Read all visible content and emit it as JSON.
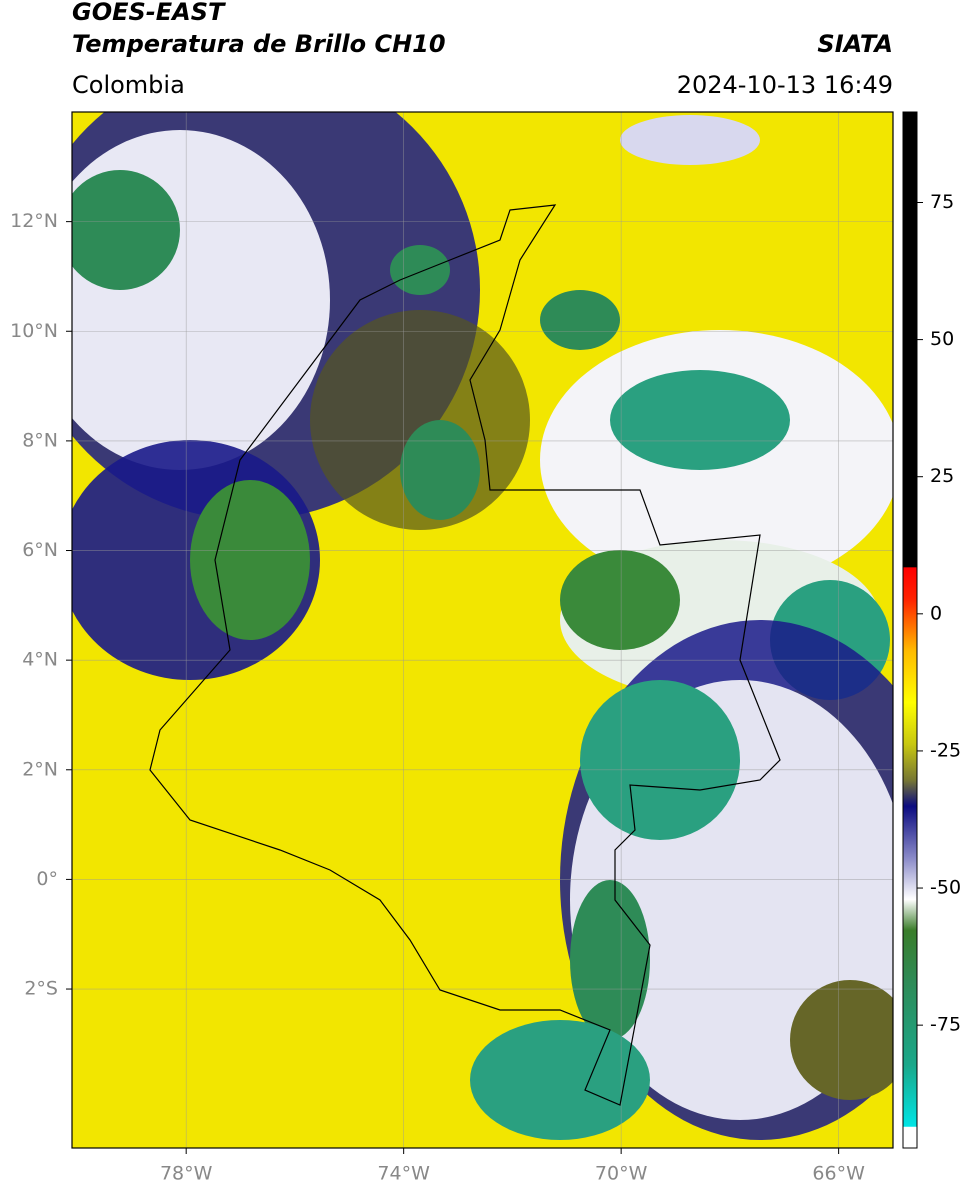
{
  "header": {
    "title": "GOES-EAST",
    "subtitle": "Temperatura de Brillo CH10",
    "source": "SIATA",
    "region": "Colombia",
    "timestamp": "2024-10-13 16:49"
  },
  "map": {
    "xlim": [
      -80.1,
      -65.0
    ],
    "ylim": [
      -4.9,
      14.0
    ],
    "grid": true,
    "xticks": [
      {
        "value": -78,
        "label": "78°W"
      },
      {
        "value": -74,
        "label": "74°W"
      },
      {
        "value": -70,
        "label": "70°W"
      },
      {
        "value": -66,
        "label": "66°W"
      }
    ],
    "yticks": [
      {
        "value": 12,
        "label": "12°N"
      },
      {
        "value": 10,
        "label": "10°N"
      },
      {
        "value": 8,
        "label": "8°N"
      },
      {
        "value": 6,
        "label": "6°N"
      },
      {
        "value": 4,
        "label": "4°N"
      },
      {
        "value": 2,
        "label": "2°N"
      },
      {
        "value": 0,
        "label": "0°"
      },
      {
        "value": -2,
        "label": "2°S"
      }
    ]
  },
  "colorbar": {
    "lim": [
      -97.4,
      91.5
    ],
    "ticks": [
      75,
      50,
      25,
      0,
      -25,
      -50,
      -75
    ]
  }
}
